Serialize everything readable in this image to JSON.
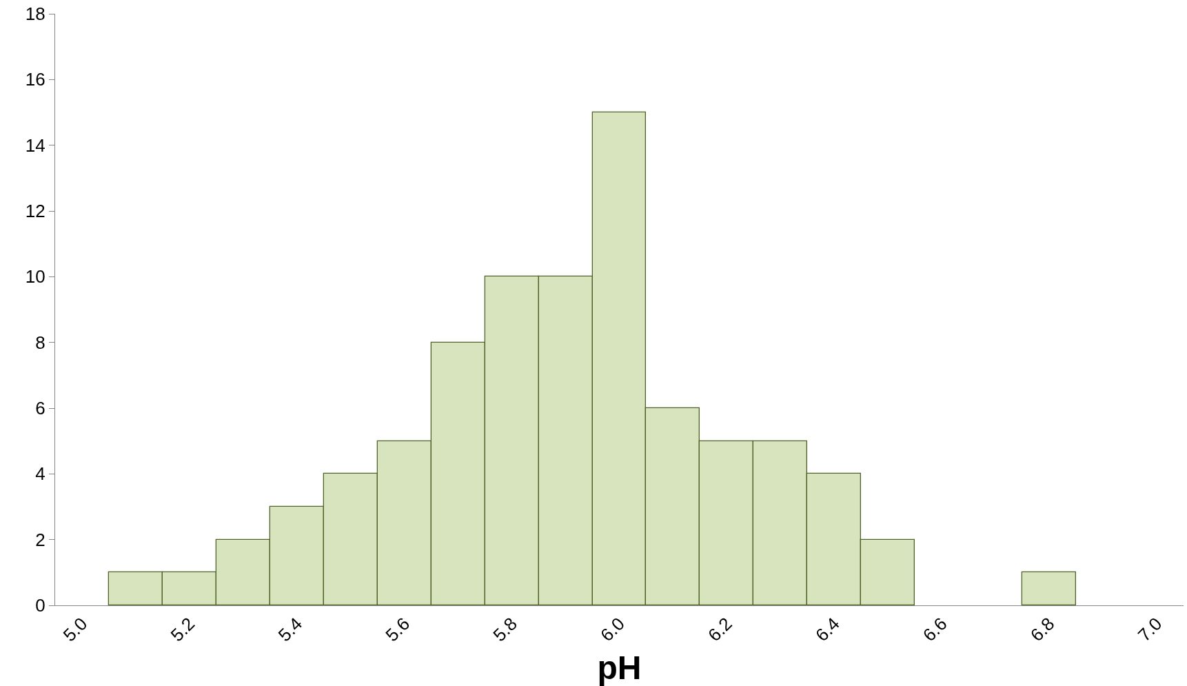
{
  "chart_data": {
    "type": "histogram",
    "xlabel": "pH",
    "bins": [
      5.05,
      5.15,
      5.25,
      5.35,
      5.45,
      5.55,
      5.65,
      5.75,
      5.85,
      5.95,
      6.05,
      6.15,
      6.25,
      6.35,
      6.45,
      6.55,
      6.65,
      6.75,
      6.85
    ],
    "values": [
      1,
      1,
      2,
      3,
      4,
      5,
      8,
      10,
      10,
      15,
      6,
      5,
      5,
      4,
      2,
      0,
      0,
      1
    ],
    "color": "#d7e4bd",
    "xlim": [
      4.95,
      7.05
    ],
    "xticks": [
      {
        "value": 5.0,
        "label": "5.0"
      },
      {
        "value": 5.2,
        "label": "5.2"
      },
      {
        "value": 5.4,
        "label": "5.4"
      },
      {
        "value": 5.6,
        "label": "5.6"
      },
      {
        "value": 5.8,
        "label": "5.8"
      },
      {
        "value": 6.0,
        "label": "6.0"
      },
      {
        "value": 6.2,
        "label": "6.2"
      },
      {
        "value": 6.4,
        "label": "6.4"
      },
      {
        "value": 6.6,
        "label": "6.6"
      },
      {
        "value": 6.8,
        "label": "6.8"
      },
      {
        "value": 7.0,
        "label": "7.0"
      }
    ],
    "ylim": [
      0,
      18
    ],
    "yticks": [
      0,
      2,
      4,
      6,
      8,
      10,
      12,
      14,
      16,
      18
    ]
  }
}
